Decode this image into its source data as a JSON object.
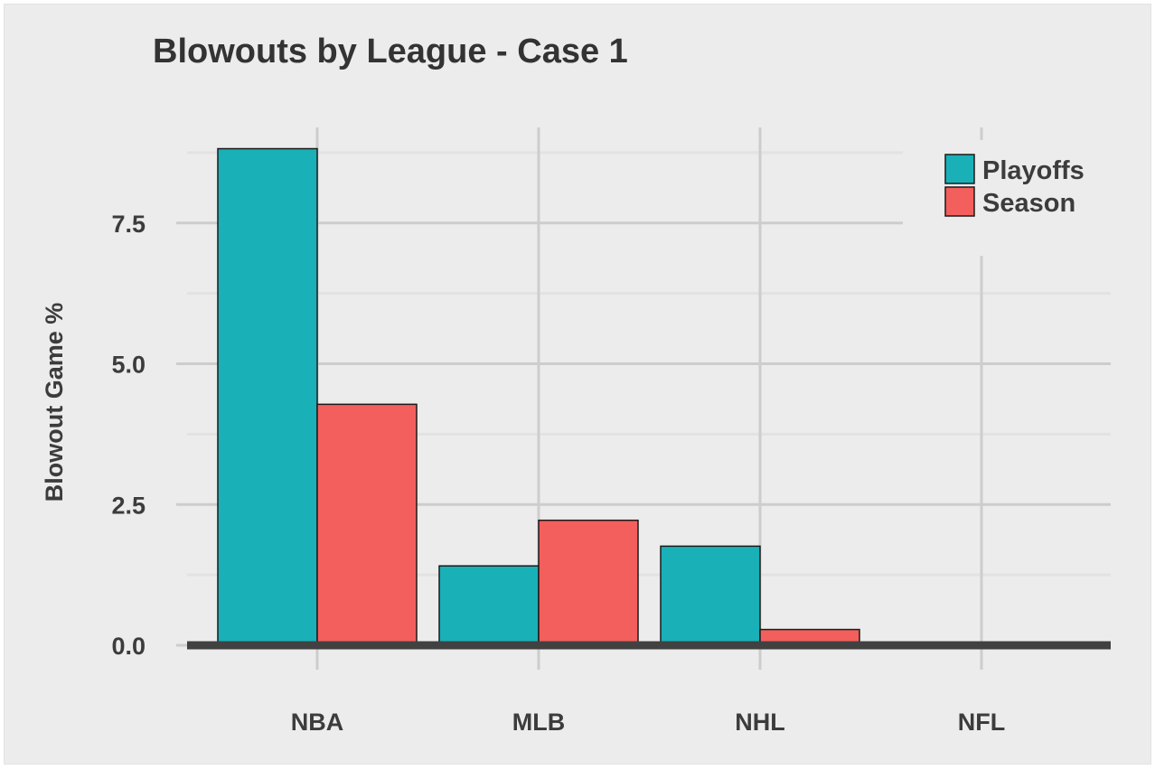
{
  "chart_data": {
    "type": "bar",
    "title": "Blowouts by League - Case 1",
    "xlabel": "",
    "ylabel": "Blowout Game %",
    "categories": [
      "NBA",
      "MLB",
      "NHL",
      "NFL"
    ],
    "series": [
      {
        "name": "Playoffs",
        "color": "#1ab0b8",
        "values": [
          8.82,
          1.41,
          1.76,
          0.0
        ]
      },
      {
        "name": "Season",
        "color": "#f35f5c",
        "values": [
          4.28,
          2.22,
          0.28,
          0.0
        ]
      }
    ],
    "yticks": [
      "0.0",
      "2.5",
      "5.0",
      "7.5"
    ],
    "ytick_values": [
      0,
      2.5,
      5.0,
      7.5
    ],
    "ylim": [
      0,
      9.2
    ],
    "grid": true,
    "legend_position": "top-right"
  }
}
